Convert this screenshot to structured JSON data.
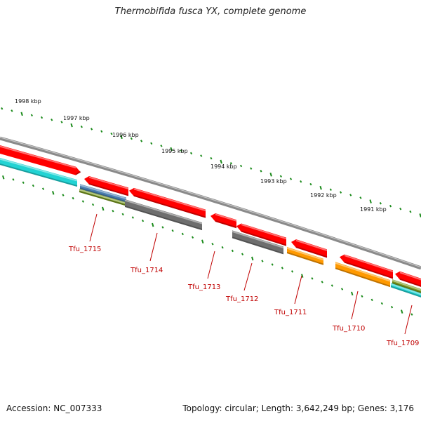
{
  "title": "Thermobifida fusca YX, complete genome",
  "footer": {
    "accession": "Accession: NC_007333",
    "stats": "Topology: circular; Length: 3,642,249 bp; Genes: 3,176"
  },
  "scale": {
    "labels": [
      "1998 kbp",
      "1997 kbp",
      "1996 kbp",
      "1995 kbp",
      "1994 kbp",
      "1993 kbp",
      "1992 kbp",
      "1991 kbp"
    ]
  },
  "colors": {
    "backbone": "#8a8a8a",
    "forward_gene": "#ff0000",
    "cds_gray": "#6e6e6e",
    "cds_orange": "#ff9900",
    "cds_cyan": "#22d3d3",
    "cds_olive": "#7a9a20",
    "cds_blue": "#4a7fb0",
    "tick": "#1a8a1a",
    "label": "#c00000"
  },
  "genes": [
    {
      "name": "Tfu_1715"
    },
    {
      "name": "Tfu_1714"
    },
    {
      "name": "Tfu_1713"
    },
    {
      "name": "Tfu_1712"
    },
    {
      "name": "Tfu_1711"
    },
    {
      "name": "Tfu_1710"
    },
    {
      "name": "Tfu_1709"
    }
  ]
}
